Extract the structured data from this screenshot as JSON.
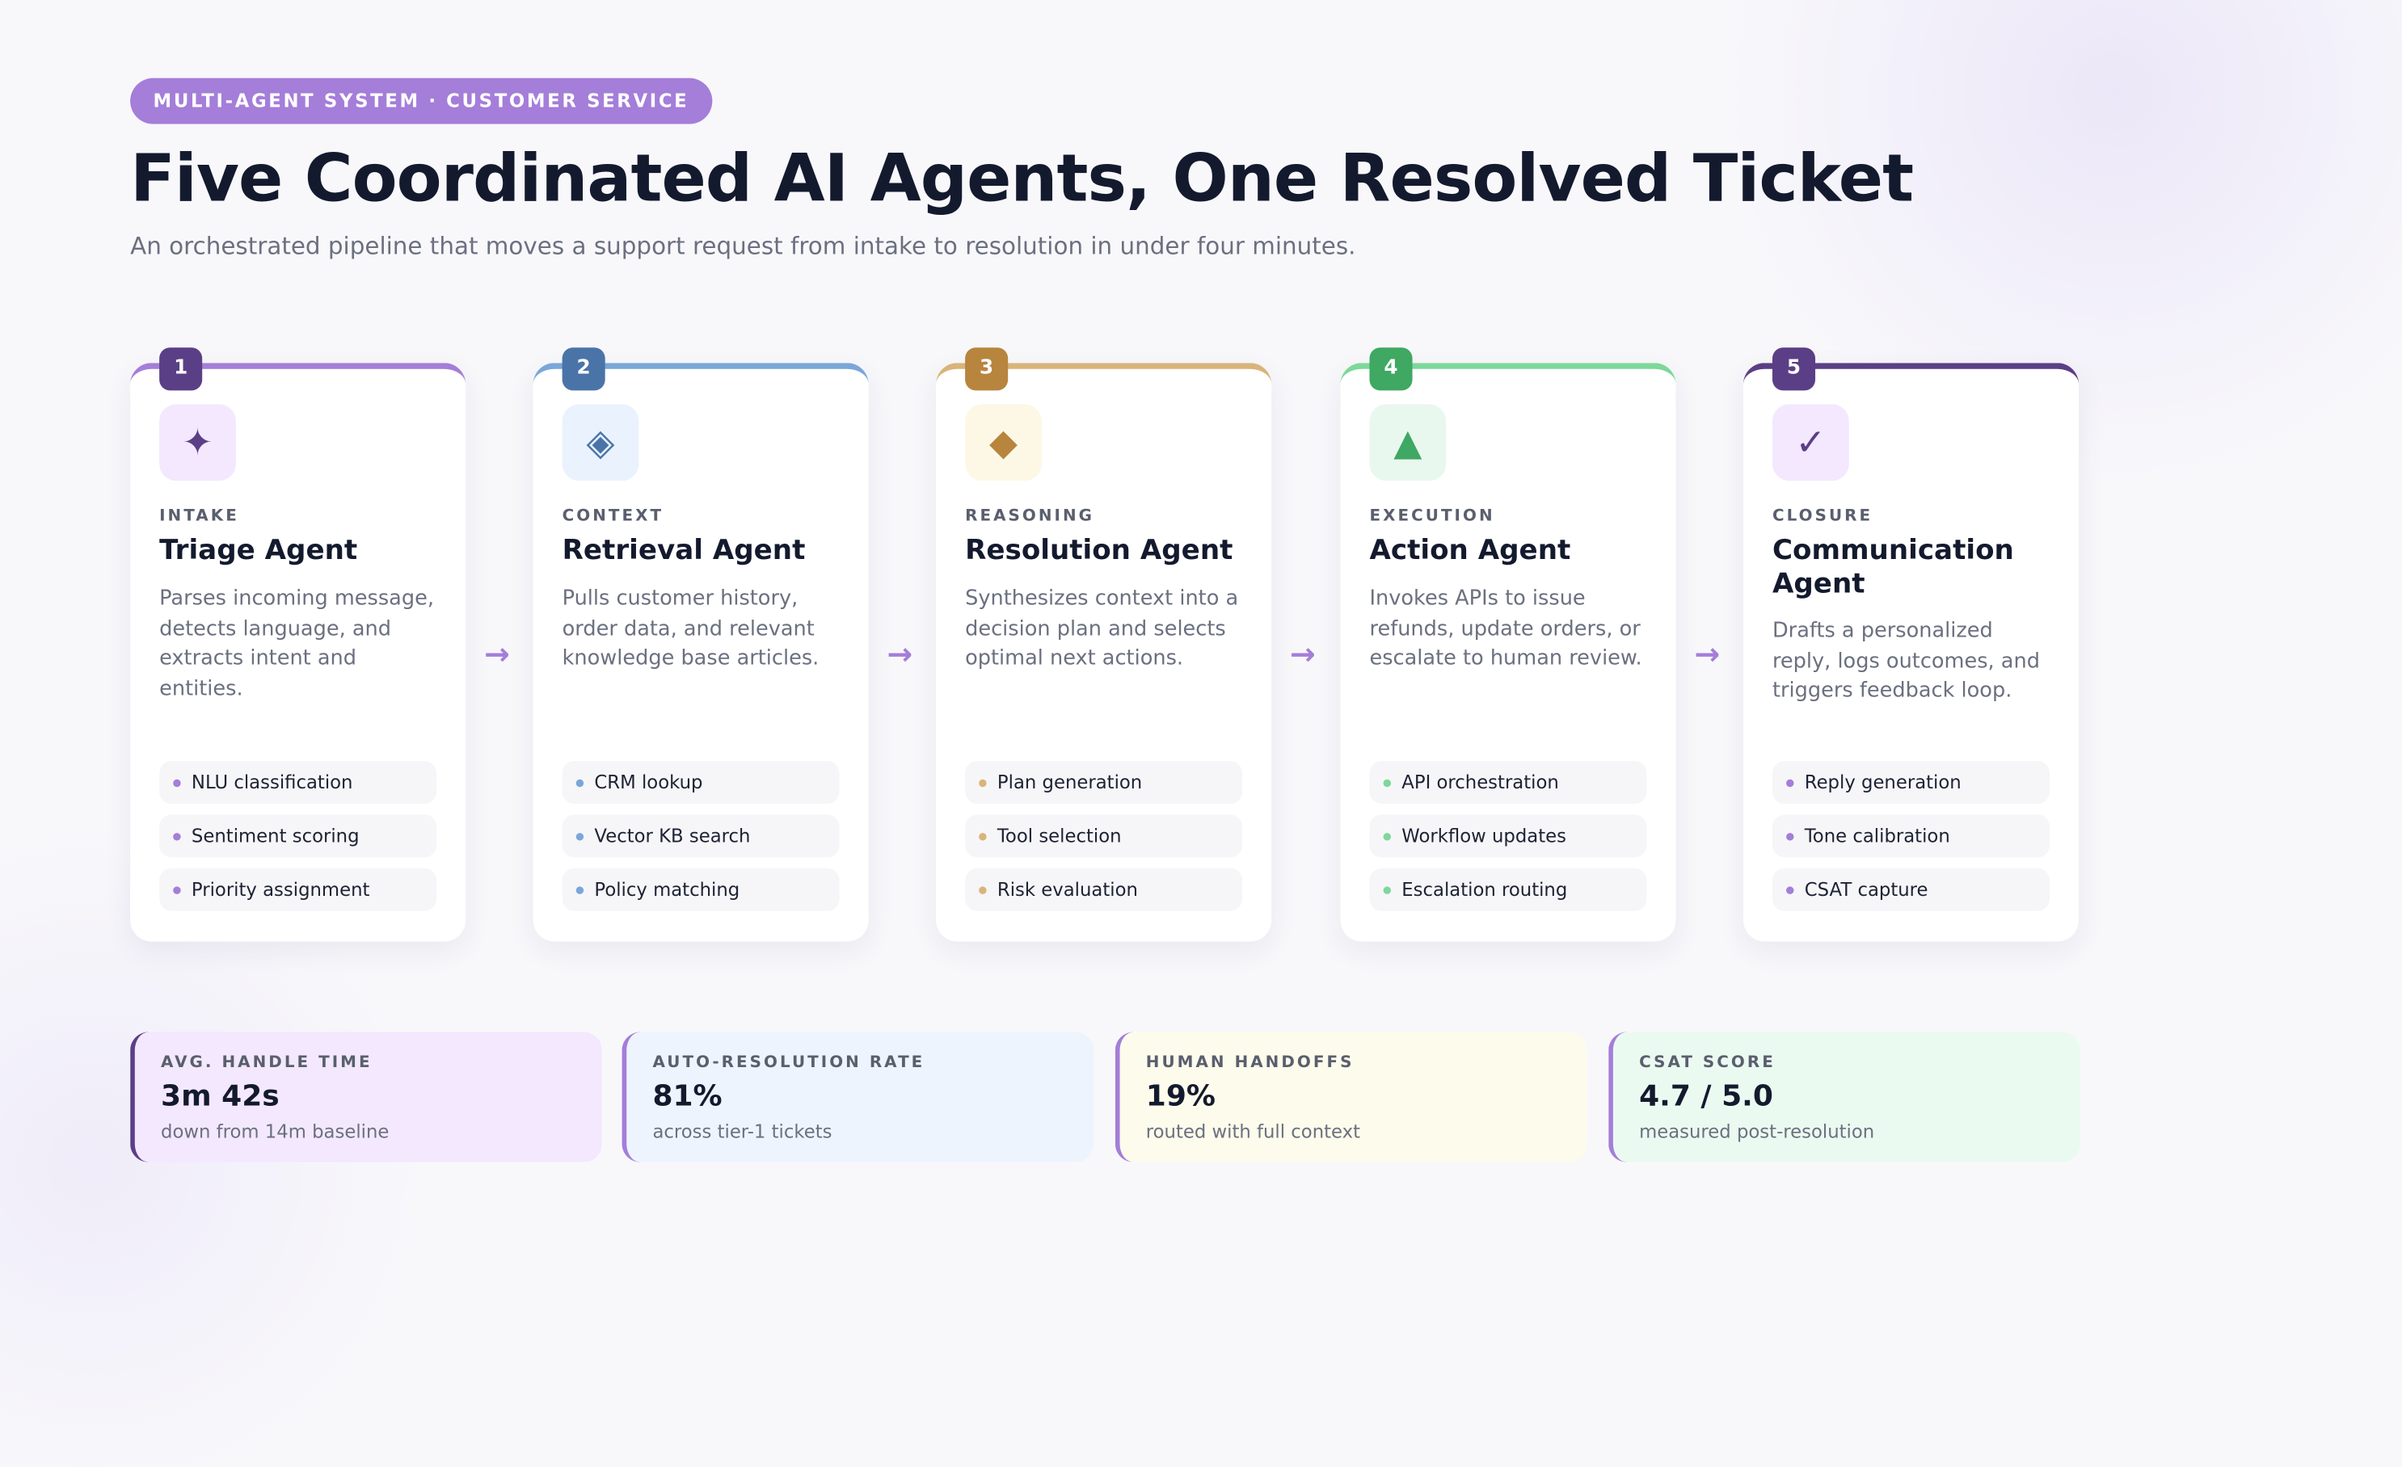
{
  "header": {
    "badge": "MULTI-AGENT SYSTEM · CUSTOMER SERVICE",
    "title": "Five Coordinated AI Agents, One Resolved Ticket",
    "subtitle": "An orchestrated pipeline that moves a support request from intake to resolution in under four minutes."
  },
  "agents": [
    {
      "step": "1",
      "icon": "✦",
      "stage": "INTAKE",
      "name": "Triage Agent",
      "description": "Parses incoming message, detects language, and extracts intent and entities.",
      "features": [
        "NLU classification",
        "Sentiment scoring",
        "Priority assignment"
      ]
    },
    {
      "step": "2",
      "icon": "◈",
      "stage": "CONTEXT",
      "name": "Retrieval Agent",
      "description": "Pulls customer history, order data, and relevant knowledge base articles.",
      "features": [
        "CRM lookup",
        "Vector KB search",
        "Policy matching"
      ]
    },
    {
      "step": "3",
      "icon": "◆",
      "stage": "REASONING",
      "name": "Resolution Agent",
      "description": "Synthesizes context into a decision plan and selects optimal next actions.",
      "features": [
        "Plan generation",
        "Tool selection",
        "Risk evaluation"
      ]
    },
    {
      "step": "4",
      "icon": "▲",
      "stage": "EXECUTION",
      "name": "Action Agent",
      "description": "Invokes APIs to issue refunds, update orders, or escalate to human review.",
      "features": [
        "API orchestration",
        "Workflow updates",
        "Escalation routing"
      ]
    },
    {
      "step": "5",
      "icon": "✓",
      "stage": "CLOSURE",
      "name": "Communication Agent",
      "description": "Drafts a personalized reply, logs outcomes, and triggers feedback loop.",
      "features": [
        "Reply generation",
        "Tone calibration",
        "CSAT capture"
      ]
    }
  ],
  "metrics": [
    {
      "label": "AVG. HANDLE TIME",
      "value": "3m 42s",
      "note": "down from 14m baseline"
    },
    {
      "label": "AUTO-RESOLUTION RATE",
      "value": "81%",
      "note": "across tier-1 tickets"
    },
    {
      "label": "HUMAN HANDOFFS",
      "value": "19%",
      "note": "routed with full context"
    },
    {
      "label": "CSAT SCORE",
      "value": "4.7 / 5.0",
      "note": "measured post-resolution"
    }
  ]
}
